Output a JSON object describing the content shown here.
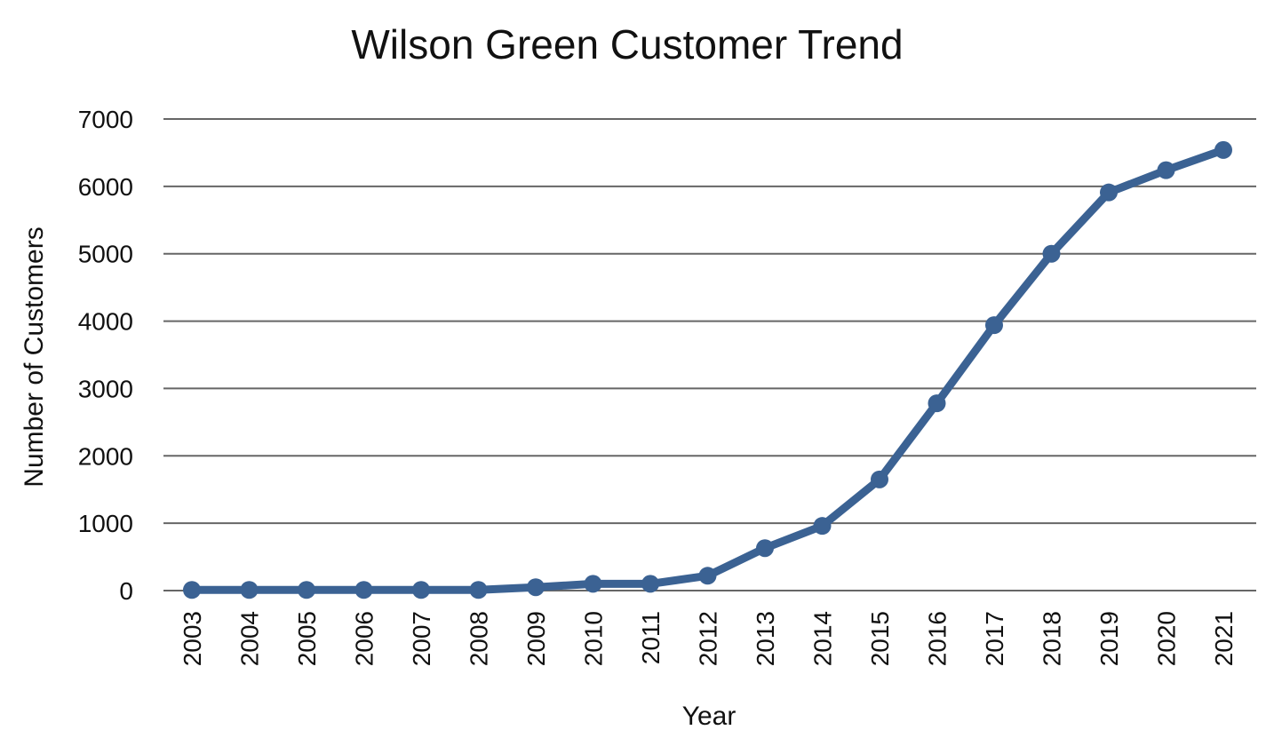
{
  "chart_data": {
    "type": "line",
    "title": "Wilson Green Customer Trend",
    "xlabel": "Year",
    "ylabel": "Number  of Customers",
    "categories": [
      "2003",
      "2004",
      "2005",
      "2006",
      "2007",
      "2008",
      "2009",
      "2010",
      "2011",
      "2012",
      "2013",
      "2014",
      "2015",
      "2016",
      "2017",
      "2018",
      "2019",
      "2020",
      "2021"
    ],
    "y_ticks": [
      "0",
      "1000",
      "2000",
      "3000",
      "4000",
      "5000",
      "6000",
      "7000"
    ],
    "ylim": [
      0,
      7000
    ],
    "grid": true,
    "legend": "none",
    "series": [
      {
        "values": [
          10,
          10,
          10,
          10,
          10,
          10,
          50,
          100,
          100,
          220,
          630,
          960,
          1650,
          2780,
          3940,
          5000,
          5910,
          6240,
          6540
        ],
        "color": "#3b6293"
      }
    ],
    "colors": {
      "line": "#3b6293",
      "grid": "#666666",
      "text": "#111111"
    }
  }
}
